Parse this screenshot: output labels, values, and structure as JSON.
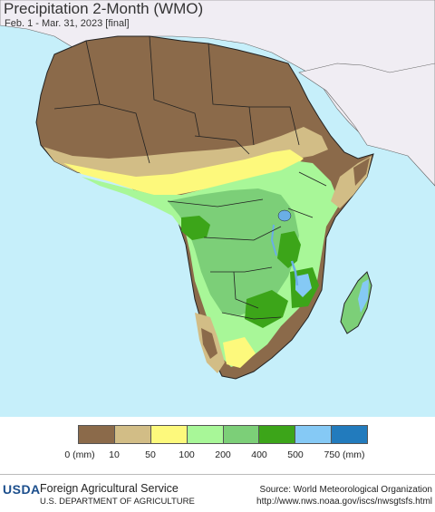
{
  "header": {
    "title": "Precipitation 2-Month (WMO)",
    "subtitle": "Feb. 1 - Mar. 31, 2023 [final]"
  },
  "map": {
    "region": "Africa",
    "colors": {
      "ocean": "#c6effa",
      "non_africa_land": "#f0edf3",
      "border": "#222222",
      "lake": "#6aaee6"
    }
  },
  "legend": {
    "colors": [
      "#8b6a4a",
      "#d2bd86",
      "#fdf97c",
      "#a8f798",
      "#7ccf78",
      "#3ca519",
      "#85c9f5",
      "#227bbd"
    ],
    "labels": [
      "0 (mm)",
      "10",
      "50",
      "100",
      "200",
      "400",
      "500",
      "750 (mm)"
    ]
  },
  "footer": {
    "agency_short": "USDA",
    "agency_name": "Foreign Agricultural Service",
    "department": "U.S. DEPARTMENT OF AGRICULTURE",
    "source": "Source: World Meteorological Organization",
    "url": "http://www.nws.noaa.gov/iscs/nwsgtsfs.html"
  }
}
